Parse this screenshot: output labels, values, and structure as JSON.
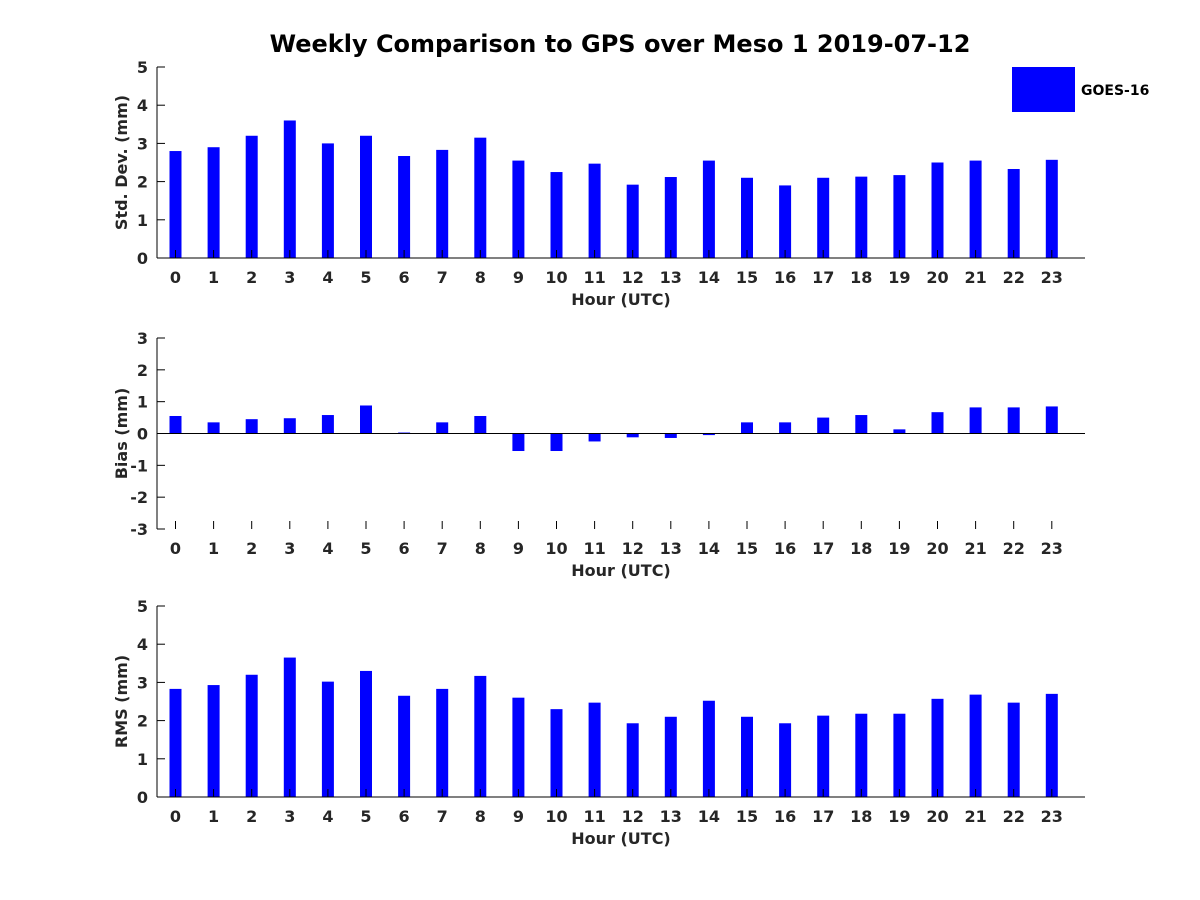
{
  "title": "Weekly Comparison to GPS over Meso 1 2019-07-12",
  "legend": {
    "label": "GOES-16",
    "color": "#0000ff",
    "position": "top-right"
  },
  "colors": {
    "bar": "#0000ff",
    "axis": "#262626",
    "background": "#ffffff"
  },
  "chart_data": [
    {
      "type": "bar",
      "name": "std-dev",
      "title": "Weekly Comparison to GPS over Meso 1 2019-07-12",
      "xlabel": "Hour (UTC)",
      "ylabel": "Std. Dev. (mm)",
      "ylim": [
        0,
        5
      ],
      "yticks": [
        "0",
        "1",
        "2",
        "3",
        "4",
        "5"
      ],
      "categories": [
        "0",
        "1",
        "2",
        "3",
        "4",
        "5",
        "6",
        "7",
        "8",
        "9",
        "10",
        "11",
        "12",
        "13",
        "14",
        "15",
        "16",
        "17",
        "18",
        "19",
        "20",
        "21",
        "22",
        "23"
      ],
      "series": [
        {
          "name": "GOES-16",
          "values": [
            2.8,
            2.9,
            3.2,
            3.6,
            3.0,
            3.2,
            2.67,
            2.83,
            3.15,
            2.55,
            2.25,
            2.47,
            1.92,
            2.12,
            2.55,
            2.1,
            1.9,
            2.1,
            2.13,
            2.17,
            2.5,
            2.55,
            2.33,
            2.57
          ]
        }
      ]
    },
    {
      "type": "bar",
      "name": "bias",
      "xlabel": "Hour (UTC)",
      "ylabel": "Bias (mm)",
      "ylim": [
        -3,
        3
      ],
      "yticks": [
        "-3",
        "-2",
        "-1",
        "0",
        "1",
        "2",
        "3"
      ],
      "categories": [
        "0",
        "1",
        "2",
        "3",
        "4",
        "5",
        "6",
        "7",
        "8",
        "9",
        "10",
        "11",
        "12",
        "13",
        "14",
        "15",
        "16",
        "17",
        "18",
        "19",
        "20",
        "21",
        "22",
        "23"
      ],
      "series": [
        {
          "name": "GOES-16",
          "values": [
            0.55,
            0.35,
            0.45,
            0.48,
            0.58,
            0.88,
            0.03,
            0.35,
            0.55,
            -0.55,
            -0.55,
            -0.25,
            -0.12,
            -0.14,
            -0.05,
            0.35,
            0.35,
            0.5,
            0.58,
            0.13,
            0.67,
            0.82,
            0.82,
            0.85
          ]
        }
      ]
    },
    {
      "type": "bar",
      "name": "rms",
      "xlabel": "Hour (UTC)",
      "ylabel": "RMS (mm)",
      "ylim": [
        0,
        5
      ],
      "yticks": [
        "0",
        "1",
        "2",
        "3",
        "4",
        "5"
      ],
      "categories": [
        "0",
        "1",
        "2",
        "3",
        "4",
        "5",
        "6",
        "7",
        "8",
        "9",
        "10",
        "11",
        "12",
        "13",
        "14",
        "15",
        "16",
        "17",
        "18",
        "19",
        "20",
        "21",
        "22",
        "23"
      ],
      "series": [
        {
          "name": "GOES-16",
          "values": [
            2.83,
            2.93,
            3.2,
            3.65,
            3.02,
            3.3,
            2.65,
            2.83,
            3.17,
            2.6,
            2.3,
            2.47,
            1.93,
            2.1,
            2.52,
            2.1,
            1.93,
            2.13,
            2.18,
            2.18,
            2.57,
            2.68,
            2.47,
            2.7
          ]
        }
      ]
    }
  ]
}
